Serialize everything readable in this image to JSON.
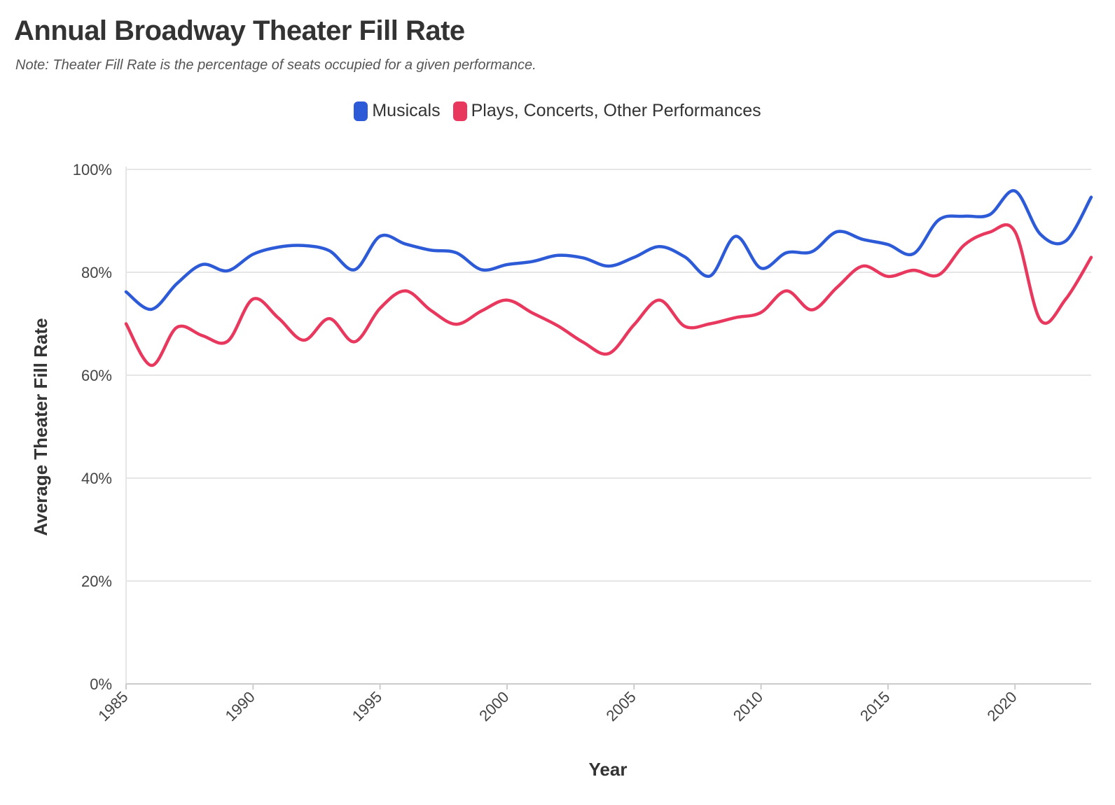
{
  "chart_data": {
    "type": "line",
    "title": "Annual Broadway Theater Fill Rate",
    "subtitle": "Note: Theater Fill Rate is the percentage of seats occupied for a given performance.",
    "xlabel": "Year",
    "ylabel": "Average Theater Fill Rate",
    "x": [
      1985,
      1986,
      1987,
      1988,
      1989,
      1990,
      1991,
      1992,
      1993,
      1994,
      1995,
      1996,
      1997,
      1998,
      1999,
      2000,
      2001,
      2002,
      2003,
      2004,
      2005,
      2006,
      2007,
      2008,
      2009,
      2010,
      2011,
      2012,
      2013,
      2014,
      2015,
      2016,
      2017,
      2018,
      2019,
      2020,
      2021,
      2022,
      2023
    ],
    "xlim": [
      1985,
      2023
    ],
    "ylim": [
      0,
      100
    ],
    "x_ticks": [
      "1985",
      "1990",
      "1995",
      "2000",
      "2005",
      "2010",
      "2015",
      "2020"
    ],
    "y_ticks": [
      "0%",
      "20%",
      "40%",
      "60%",
      "80%",
      "100%"
    ],
    "grid": true,
    "legend_position": "top-center",
    "series": [
      {
        "name": "Musicals",
        "color": "#2D5BD7",
        "values": [
          76.2,
          72.8,
          77.8,
          81.5,
          80.3,
          83.5,
          84.9,
          85.2,
          84.2,
          80.5,
          87.0,
          85.5,
          84.3,
          83.8,
          80.5,
          81.5,
          82.1,
          83.3,
          82.8,
          81.2,
          82.9,
          85.0,
          83.0,
          79.3,
          87.0,
          80.8,
          83.8,
          84.0,
          87.9,
          86.4,
          85.4,
          83.6,
          90.2,
          90.9,
          91.2,
          95.8,
          87.4,
          86.1,
          94.6
        ]
      },
      {
        "name": "Plays, Concerts, Other Performances",
        "color": "#E8385E",
        "values": [
          70.0,
          61.9,
          69.3,
          67.7,
          66.6,
          74.8,
          71.1,
          66.8,
          71.0,
          66.5,
          73.0,
          76.4,
          72.6,
          69.9,
          72.5,
          74.6,
          72.1,
          69.6,
          66.4,
          64.2,
          69.8,
          74.6,
          69.5,
          70.0,
          71.2,
          72.2,
          76.4,
          72.7,
          77.1,
          81.2,
          79.2,
          80.4,
          79.5,
          85.3,
          87.8,
          87.9,
          70.7,
          74.8,
          82.9
        ]
      }
    ]
  }
}
